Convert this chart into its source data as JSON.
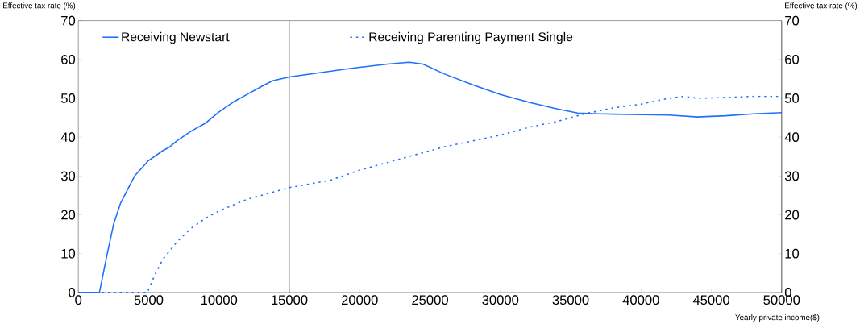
{
  "chart_data": {
    "type": "line",
    "xlabel": "Yearly private income($)",
    "ylabel": "Effective tax rate (%)",
    "y2label": "Effective tax rate (%)",
    "xlim": [
      0,
      50000
    ],
    "xticks": [
      0,
      5000,
      10000,
      15000,
      20000,
      25000,
      30000,
      35000,
      40000,
      45000,
      50000
    ],
    "ylim": [
      0,
      70
    ],
    "yticks": [
      0,
      10,
      20,
      30,
      40,
      50,
      60,
      70
    ],
    "y2lim": [
      0,
      70
    ],
    "y2ticks": [
      0,
      10,
      20,
      30,
      40,
      50,
      60,
      70
    ],
    "legend": "top",
    "grid": false,
    "ref_lines": [
      {
        "axis": "x",
        "value": 15000,
        "color": "#000000"
      }
    ],
    "series": [
      {
        "name": "Receiving Newstart",
        "color": "#1f6fff",
        "line_style": "solid",
        "x": [
          0,
          1500,
          2000,
          2500,
          3000,
          4000,
          5000,
          6000,
          6500,
          7000,
          8000,
          9000,
          10000,
          11000,
          12000,
          13000,
          13800,
          15000,
          17000,
          19000,
          20000,
          22000,
          23500,
          24500,
          26000,
          28000,
          30000,
          32000,
          34000,
          35500,
          37000,
          40000,
          42000,
          44000,
          46000,
          48000,
          50000
        ],
        "values": [
          0,
          0,
          9,
          17.5,
          23,
          30,
          34,
          36.5,
          37.5,
          39,
          41.5,
          43.5,
          46.5,
          49,
          51,
          53,
          54.5,
          55.5,
          56.5,
          57.5,
          58,
          58.8,
          59.3,
          58.8,
          56.3,
          53.5,
          51,
          49,
          47.3,
          46.2,
          46,
          45.8,
          45.7,
          45.2,
          45.5,
          46,
          46.3
        ]
      },
      {
        "name": "Receiving Parenting Payment Single",
        "color": "#1f6fff",
        "line_style": "dotted",
        "x": [
          0,
          4900,
          5500,
          6000,
          7000,
          8000,
          9000,
          10000,
          11000,
          12000,
          13000,
          15000,
          17000,
          18000,
          20000,
          22000,
          24000,
          26000,
          28000,
          30000,
          32000,
          34000,
          36000,
          38000,
          40000,
          42000,
          43000,
          44000,
          46000,
          48000,
          50000
        ],
        "values": [
          0,
          0,
          5,
          8.5,
          13,
          16.5,
          19,
          21,
          22.5,
          24,
          25,
          27,
          28.3,
          29,
          31.5,
          33.5,
          35.5,
          37.5,
          39,
          40.5,
          42.5,
          44,
          46,
          47.5,
          48.5,
          50,
          50.5,
          50,
          50.2,
          50.5,
          50.5
        ]
      }
    ]
  }
}
